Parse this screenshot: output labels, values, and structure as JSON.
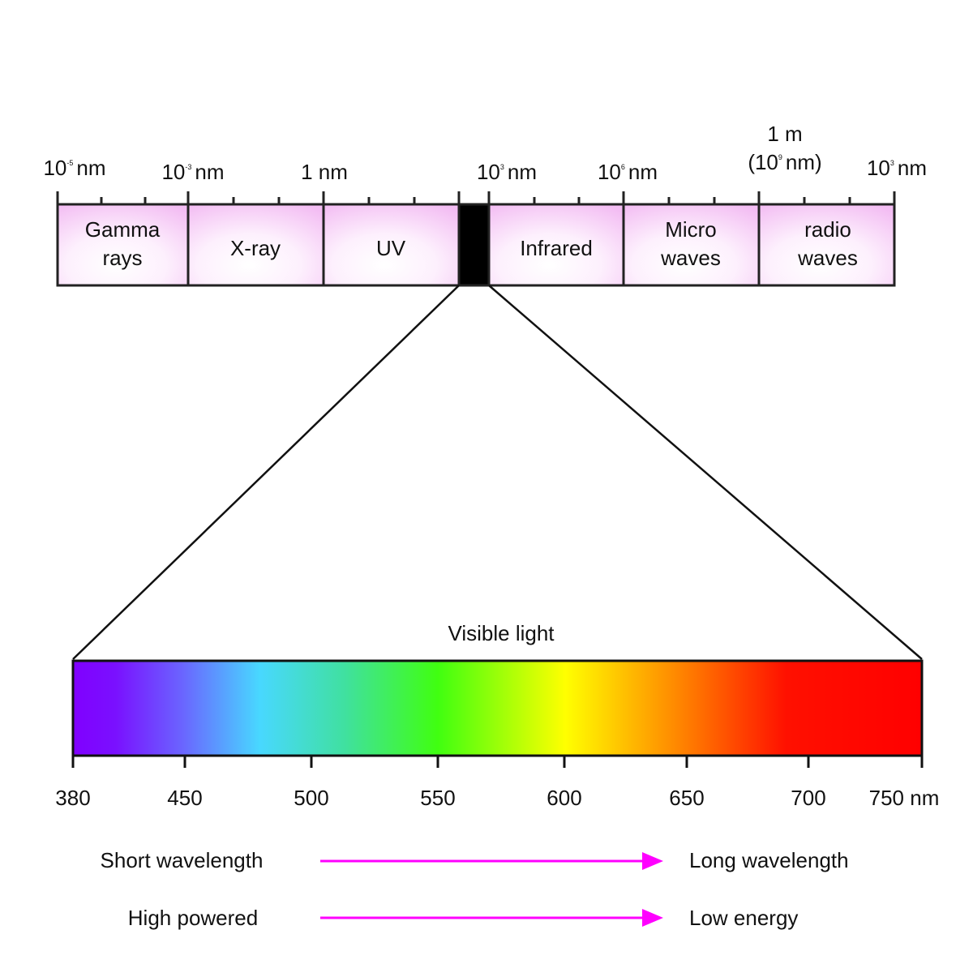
{
  "spectrum": {
    "scale": [
      {
        "base": "10",
        "exp": "-5",
        "unit": "nm"
      },
      {
        "base": "10",
        "exp": "-3",
        "unit": "nm"
      },
      {
        "text": "1 nm"
      },
      {
        "base": "10",
        "exp": "3",
        "unit": "nm"
      },
      {
        "base": "10",
        "exp": "6",
        "unit": "nm"
      },
      {
        "line1": "1 m",
        "base": "(10",
        "exp": "9",
        "unit": "nm)"
      },
      {
        "base": "10",
        "exp": "3",
        "unit": "nm"
      }
    ],
    "bands": [
      [
        "Gamma",
        "rays"
      ],
      [
        "X-ray"
      ],
      [
        "UV"
      ],
      [
        "Infrared"
      ],
      [
        "Micro",
        "waves"
      ],
      [
        "radio",
        "waves"
      ]
    ]
  },
  "visible": {
    "title": "Visible light",
    "ticks": [
      "380",
      "450",
      "500",
      "550",
      "600",
      "650",
      "700",
      "750 nm"
    ]
  },
  "arrows": [
    {
      "from": "Short wavelength",
      "to": "Long wavelength"
    },
    {
      "from": "High powered",
      "to": "Low energy"
    }
  ]
}
